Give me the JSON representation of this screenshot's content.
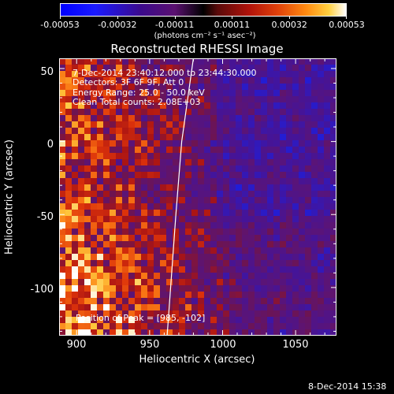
{
  "colorbar": {
    "ticks": [
      "-0.00053",
      "-0.00032",
      "-0.00011",
      "0.00011",
      "0.00032",
      "0.00053"
    ],
    "units": "(photons cm⁻² s⁻¹ asec⁻²)"
  },
  "chart_data": {
    "type": "heatmap",
    "title": "Reconstructed RHESSI Image",
    "xlabel": "Heliocentric X (arcsec)",
    "ylabel": "Heliocentric Y (arcsec)",
    "xlim": [
      888,
      1078
    ],
    "ylim": [
      -133,
      57
    ],
    "xticks": [
      "900",
      "950",
      "1000",
      "1050"
    ],
    "yticks": [
      "50",
      "0",
      "-50",
      "-100"
    ],
    "color_range": [
      -0.00053,
      0.00053
    ],
    "limb_line": [
      [
        980,
        57
      ],
      [
        972,
        0
      ],
      [
        968,
        -50
      ],
      [
        962,
        -133
      ]
    ],
    "annotations": [
      "7-Dec-2014 23:40:12.000 to 23:44:30.000",
      "Detectors: 3F 6F 9F, Att 0",
      "Energy Range: 25.0 - 50.0 keV",
      "Clean    Total counts: 2.08E+03",
      "Position of Peak = [985, -102]"
    ]
  },
  "footer": {
    "timestamp": "8-Dec-2014 15:38"
  }
}
